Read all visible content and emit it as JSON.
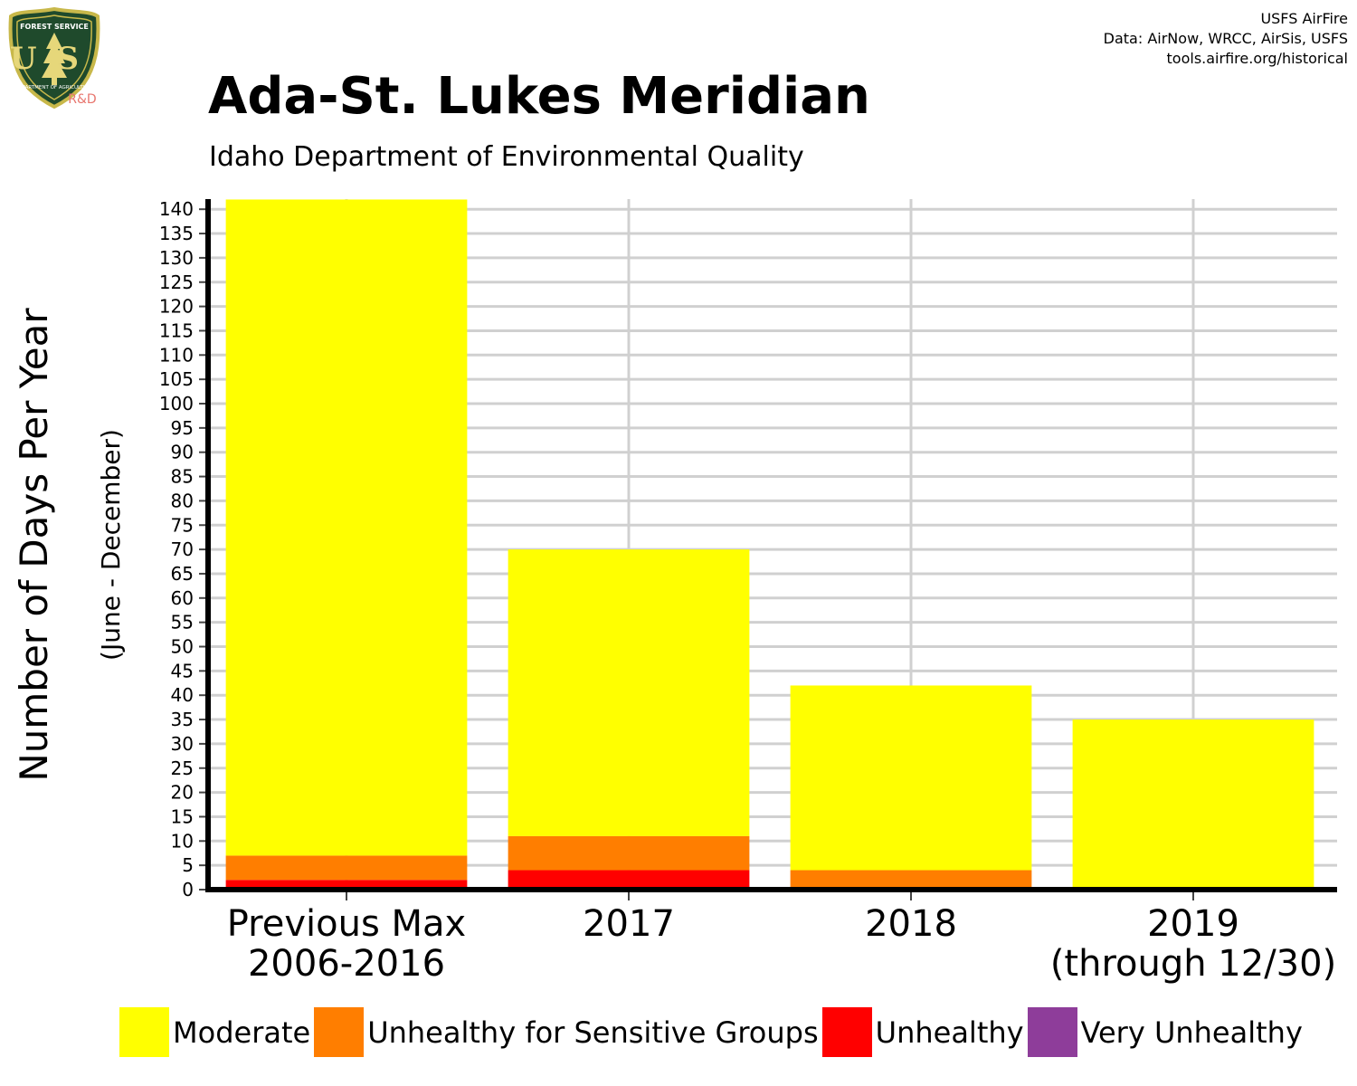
{
  "header": {
    "logo": {
      "text_top": "FOREST SERVICE",
      "text_main": "US",
      "text_bottom": "DEPARTMENT OF AGRICULTURE",
      "text_rd": "R&D"
    },
    "credits": [
      "USFS AirFire",
      "Data: AirNow, WRCC, AirSis, USFS",
      "tools.airfire.org/historical"
    ]
  },
  "chart_data": {
    "type": "bar",
    "stacked": true,
    "title": "Ada-St. Lukes Meridian",
    "subtitle": "Idaho Department of Environmental Quality",
    "ylabel": "Number of Days Per Year",
    "ylabel_sub": "(June - December)",
    "xlabel": "",
    "categories": [
      [
        "Previous Max",
        "2006-2016"
      ],
      [
        "2017"
      ],
      [
        "2018"
      ],
      [
        "2019",
        "(through 12/30)"
      ]
    ],
    "ylim": [
      0,
      142
    ],
    "yticks": [
      0,
      5,
      10,
      15,
      20,
      25,
      30,
      35,
      40,
      45,
      50,
      55,
      60,
      65,
      70,
      75,
      80,
      85,
      90,
      95,
      100,
      105,
      110,
      115,
      120,
      125,
      130,
      135,
      140
    ],
    "grid": true,
    "series": [
      {
        "name": "Very Unhealthy",
        "color": "#8E3D9A",
        "values": [
          0,
          0,
          0,
          0
        ]
      },
      {
        "name": "Unhealthy",
        "color": "#FF0000",
        "values": [
          2,
          4,
          0,
          0
        ]
      },
      {
        "name": "Unhealthy for Sensitive Groups",
        "color": "#FF7E00",
        "values": [
          5,
          7,
          4,
          0
        ]
      },
      {
        "name": "Moderate",
        "color": "#FFFF00",
        "values": [
          135,
          59,
          38,
          35
        ]
      }
    ],
    "legend": {
      "position": "bottom",
      "entries": [
        {
          "label": "Moderate",
          "color": "#FFFF00"
        },
        {
          "label": "Unhealthy for Sensitive Groups",
          "color": "#FF7E00"
        },
        {
          "label": "Unhealthy",
          "color": "#FF0000"
        },
        {
          "label": "Very Unhealthy",
          "color": "#8E3D9A"
        }
      ]
    }
  }
}
